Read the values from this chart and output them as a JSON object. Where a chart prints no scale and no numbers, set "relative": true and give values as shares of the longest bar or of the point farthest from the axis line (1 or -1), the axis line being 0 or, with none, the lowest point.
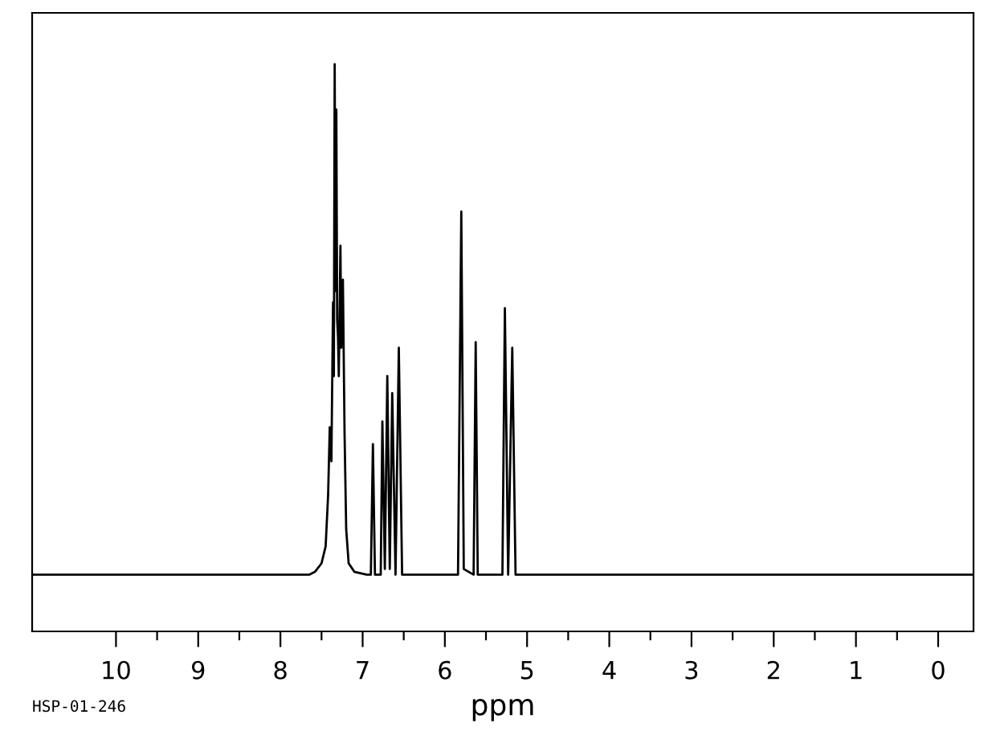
{
  "chart_data": {
    "type": "line",
    "relative": true,
    "xlabel": "ppm",
    "annotations": [
      "HSP-01-246"
    ],
    "xlim": [
      11.02,
      -0.43
    ],
    "xticks": [
      10,
      {
        "value": 9.5,
        "label": null
      },
      9,
      {
        "value": 8.5,
        "label": null
      },
      8,
      {
        "value": 7.5,
        "label": null
      },
      7,
      {
        "value": 6.5,
        "label": null
      },
      6,
      {
        "value": 5.5,
        "label": null
      },
      5,
      {
        "value": 4.5,
        "label": null
      },
      4,
      {
        "value": 3.5,
        "label": null
      },
      3,
      {
        "value": 2.5,
        "label": null
      },
      2,
      {
        "value": 1.5,
        "label": null
      },
      1,
      {
        "value": 0.5,
        "label": null
      },
      0
    ],
    "tick_labels": "x",
    "grid": false,
    "legend": false,
    "series": [
      {
        "color": "#000000",
        "x": [
          11.0,
          7.65,
          7.58,
          7.5,
          7.45,
          7.42,
          7.4,
          7.38,
          7.36,
          7.35,
          7.34,
          7.33,
          7.32,
          7.31,
          7.3,
          7.29,
          7.27,
          7.26,
          7.24,
          7.22,
          7.2,
          7.17,
          7.1,
          6.95,
          6.9,
          6.875,
          6.85,
          6.78,
          6.76,
          6.73,
          6.7,
          6.67,
          6.64,
          6.6,
          6.56,
          6.52,
          5.84,
          5.8,
          5.77,
          5.65,
          5.625,
          5.6,
          5.3,
          5.27,
          5.23,
          5.18,
          5.14,
          -0.43
        ],
        "values": [
          0.1,
          0.1,
          0.105,
          0.12,
          0.15,
          0.24,
          0.36,
          0.3,
          0.58,
          0.45,
          1.0,
          0.6,
          0.92,
          0.55,
          0.52,
          0.45,
          0.68,
          0.5,
          0.62,
          0.35,
          0.18,
          0.12,
          0.105,
          0.1,
          0.1,
          0.33,
          0.1,
          0.1,
          0.37,
          0.11,
          0.45,
          0.11,
          0.42,
          0.1,
          0.5,
          0.1,
          0.1,
          0.74,
          0.11,
          0.1,
          0.51,
          0.1,
          0.1,
          0.57,
          0.1,
          0.5,
          0.1,
          0.1
        ]
      }
    ]
  }
}
